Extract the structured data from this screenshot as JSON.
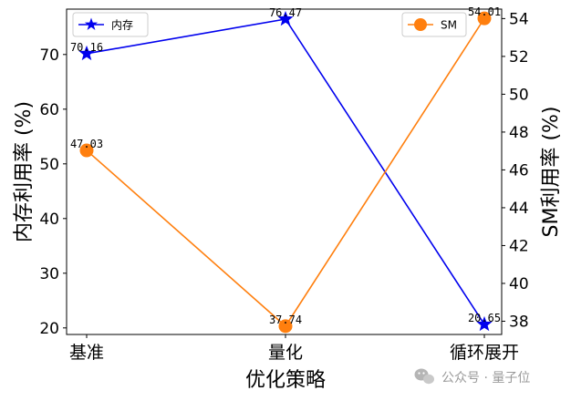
{
  "chart_data": {
    "type": "line",
    "categories": [
      "基准",
      "量化",
      "循环展开"
    ],
    "xlabel": "优化策略",
    "series": [
      {
        "name": "内存",
        "axis": "left",
        "values": [
          70.16,
          76.47,
          20.65
        ],
        "color": "#0000ee",
        "marker": "star"
      },
      {
        "name": "SM",
        "axis": "right",
        "values": [
          47.03,
          37.74,
          54.01
        ],
        "color": "#ff7f0e",
        "marker": "circle"
      }
    ],
    "data_labels": {
      "left": [
        "70.16",
        "76.47",
        "20.65"
      ],
      "right": [
        "47.03",
        "37.74",
        "54.01"
      ]
    },
    "ylabel_left": "内存利用率 (%)",
    "ylabel_right": "SM利用率 (%)",
    "ylim_left": [
      18.8,
      78.3
    ],
    "ylim_right": [
      37.3,
      54.5
    ],
    "yticks_left": [
      20,
      30,
      40,
      50,
      60,
      70
    ],
    "yticks_right": [
      38,
      40,
      42,
      44,
      46,
      48,
      50,
      52,
      54
    ],
    "grid": false,
    "legend_left": {
      "label": "内存",
      "placement": "top-left"
    },
    "legend_right": {
      "label": "SM",
      "placement": "top-right"
    }
  },
  "watermark": {
    "text": "公众号 · 量子位",
    "icon": "wechat-icon"
  }
}
